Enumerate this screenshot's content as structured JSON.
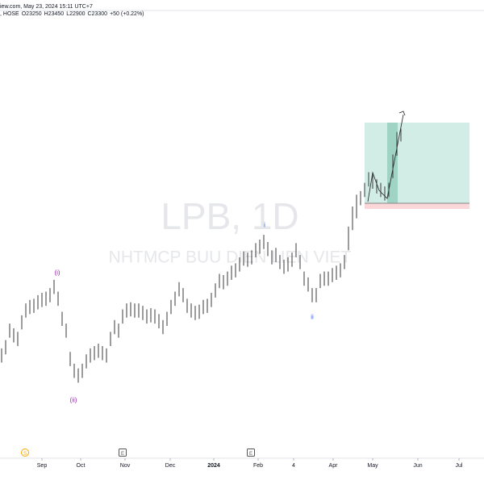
{
  "chart_data": {
    "type": "ohlc",
    "header": {
      "source": "iew.com, May 23, 2024 15:11 UTC+7",
      "exchange": ", HOSE",
      "open": "O23250",
      "high": "H23450",
      "low": "L22900",
      "close": "C23300",
      "change": "+50 (+0.22%)"
    },
    "title": "LPB, 1D",
    "subtitle": "NHTMCP BUU DIEN LIEN VIET",
    "color": "#3a3a3a",
    "high": [
      14150,
      14500,
      15200,
      15000,
      14850,
      15550,
      16050,
      16200,
      16250,
      16400,
      16500,
      16550,
      16700,
      17050,
      16550,
      15700,
      15200,
      14000,
      13500,
      13300,
      13500,
      13900,
      14150,
      14250,
      14350,
      14250,
      14150,
      14850,
      15350,
      15200,
      15800,
      16050,
      16100,
      16050,
      16050,
      15950,
      15800,
      15850,
      15800,
      15600,
      15350,
      15700,
      16200,
      16550,
      16950,
      16700,
      16250,
      16050,
      15950,
      16000,
      16200,
      16250,
      16500,
      16900,
      17300,
      17250,
      17400,
      17650,
      17750,
      18000,
      18250,
      18200,
      18300,
      18600,
      18750,
      18950,
      18650,
      18300,
      18400,
      18100,
      17900,
      18000,
      18200,
      18600,
      18100,
      17400,
      17150,
      16700,
      16700,
      17300,
      17400,
      17400,
      17550,
      17650,
      17750,
      18100,
      19300,
      20150,
      20650,
      20800,
      21150,
      21600,
      21500,
      21300,
      21150,
      21000,
      21150,
      22350,
      23300,
      23450
    ],
    "low": [
      13550,
      13900,
      14600,
      14400,
      14250,
      14950,
      15450,
      15600,
      15650,
      15800,
      15900,
      15950,
      16100,
      16450,
      15950,
      15100,
      14600,
      13400,
      12900,
      12700,
      12900,
      13300,
      13550,
      13650,
      13750,
      13650,
      13550,
      14250,
      14750,
      14600,
      15200,
      15450,
      15500,
      15450,
      15450,
      15350,
      15200,
      15250,
      15200,
      15000,
      14750,
      15100,
      15600,
      15950,
      16350,
      16100,
      15650,
      15450,
      15350,
      15400,
      15600,
      15650,
      15900,
      16300,
      16700,
      16650,
      16800,
      17050,
      17150,
      17400,
      17650,
      17600,
      17700,
      18000,
      18150,
      18350,
      18050,
      17700,
      17800,
      17500,
      17300,
      17400,
      17600,
      18000,
      17500,
      16800,
      16550,
      16100,
      16100,
      16700,
      16800,
      16800,
      16950,
      17050,
      17150,
      17500,
      18300,
      19150,
      19650,
      20200,
      20550,
      21000,
      20900,
      20700,
      20550,
      20400,
      20550,
      21350,
      22300,
      22900
    ],
    "ylim": [
      9950,
      28200
    ],
    "xlim": [
      -0.4,
      119.6
    ],
    "xticks": [
      {
        "value": 10,
        "label": "Sep"
      },
      {
        "value": 19.6,
        "label": "Oct"
      },
      {
        "value": 30.6,
        "label": "Nov"
      },
      {
        "value": 41.8,
        "label": "Dec"
      },
      {
        "value": 52.6,
        "label": "2024"
      },
      {
        "value": 63.6,
        "label": "Feb"
      },
      {
        "value": 72.4,
        "label": "4"
      },
      {
        "value": 82.2,
        "label": "Apr"
      },
      {
        "value": 92,
        "label": "May"
      },
      {
        "value": 103.2,
        "label": "Jun"
      },
      {
        "value": 113.4,
        "label": "Jul"
      }
    ],
    "annotations": [
      "(i)",
      "(ii)",
      "i",
      "ii"
    ],
    "events": [
      "S",
      "E",
      "E"
    ]
  }
}
